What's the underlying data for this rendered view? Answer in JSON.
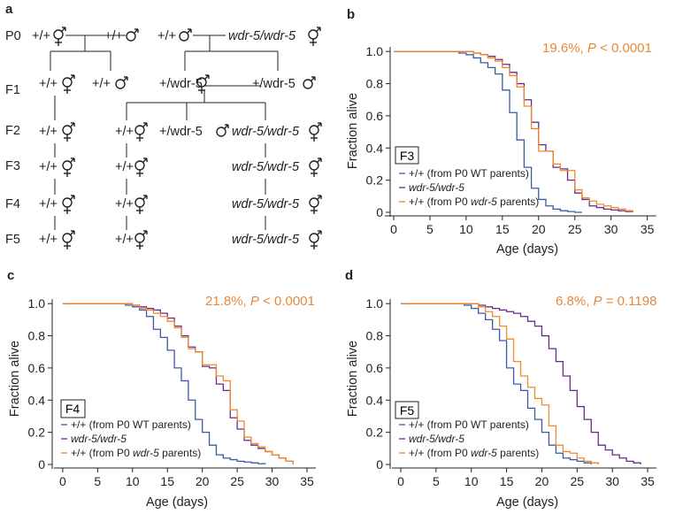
{
  "panel_labels": {
    "a": "a",
    "b": "b",
    "c": "c",
    "d": "d"
  },
  "colors": {
    "wt": "#3b5aa6",
    "mut": "#6a2a8a",
    "mut_parents": "#ee8a2a",
    "stat": "#e8883a",
    "axis": "#222222"
  },
  "pedigree": {
    "generations": [
      "P0",
      "F1",
      "F2",
      "F3",
      "F4",
      "F5"
    ],
    "p0": {
      "a": "+/+",
      "b": "+/+",
      "c": "+/+",
      "d": "wdr-5/wdr-5"
    },
    "f1": {
      "a": "+/+",
      "b": "+/+",
      "c": "+/wdr-5",
      "d": "+/wdr-5"
    },
    "f2": {
      "wt": "+/+",
      "orange": "+/+",
      "het": "+/wdr-5",
      "mut": "wdr-5/wdr-5"
    },
    "later": {
      "wt": "+/+",
      "orange": "+/+",
      "mut": "wdr-5/wdr-5"
    }
  },
  "chart_data": [
    {
      "type": "line",
      "panel": "b",
      "generation": "F3",
      "stat_pct": "19.6%,",
      "stat_p": "P",
      "stat_op": "< 0.0001",
      "xlabel": "Age (days)",
      "ylabel": "Fraction alive",
      "xlim": [
        0,
        37
      ],
      "ylim": [
        0,
        1.1
      ],
      "xticks": [
        0,
        5,
        10,
        15,
        20,
        25,
        30,
        35
      ],
      "yticks": [
        0,
        0.2,
        0.4,
        0.6,
        0.8,
        1.0
      ],
      "ytick_labels": [
        "0",
        "0.2",
        "0.4",
        "0.6",
        "0.8",
        "1.0"
      ],
      "legend_entries": [
        {
          "prefix": "+/+ (from P0 WT parents)",
          "italic": "",
          "suffix": ""
        },
        {
          "prefix": "",
          "italic": "wdr-5/wdr-5",
          "suffix": ""
        },
        {
          "prefix": "+/+ (from P0 ",
          "italic": "wdr-5",
          "suffix": " parents)"
        }
      ],
      "series": [
        {
          "color": "wt",
          "x": [
            0,
            7,
            9,
            10,
            11,
            12,
            13,
            14,
            15,
            16,
            17,
            18,
            19,
            20,
            21,
            22,
            23,
            24,
            25,
            26
          ],
          "y": [
            1.0,
            1.0,
            0.99,
            0.98,
            0.96,
            0.93,
            0.9,
            0.86,
            0.76,
            0.62,
            0.45,
            0.28,
            0.15,
            0.08,
            0.04,
            0.02,
            0.01,
            0.005,
            0.0,
            0.0
          ]
        },
        {
          "color": "mut",
          "x": [
            0,
            9,
            11,
            12,
            13,
            14,
            15,
            16,
            17,
            18,
            19,
            20,
            21,
            22,
            23,
            24,
            25,
            26,
            27,
            28,
            29,
            30,
            31,
            32,
            33
          ],
          "y": [
            1.0,
            1.0,
            0.99,
            0.98,
            0.97,
            0.95,
            0.92,
            0.87,
            0.8,
            0.7,
            0.56,
            0.42,
            0.38,
            0.28,
            0.27,
            0.2,
            0.12,
            0.08,
            0.04,
            0.03,
            0.02,
            0.015,
            0.01,
            0.005,
            0.0
          ]
        },
        {
          "color": "mut_parents",
          "x": [
            0,
            9,
            11,
            12,
            13,
            14,
            15,
            16,
            17,
            18,
            19,
            20,
            21,
            22,
            23,
            24,
            25,
            26,
            27,
            28,
            29,
            30,
            31,
            32,
            33
          ],
          "y": [
            1.0,
            1.0,
            0.99,
            0.98,
            0.96,
            0.94,
            0.9,
            0.85,
            0.78,
            0.66,
            0.52,
            0.38,
            0.38,
            0.3,
            0.26,
            0.26,
            0.14,
            0.09,
            0.07,
            0.05,
            0.04,
            0.03,
            0.02,
            0.01,
            0.0
          ]
        }
      ]
    },
    {
      "type": "line",
      "panel": "c",
      "generation": "F4",
      "stat_pct": "21.8%,",
      "stat_p": "P",
      "stat_op": "< 0.0001",
      "xlabel": "Age (days)",
      "ylabel": "Fraction alive",
      "xlim": [
        -1,
        35
      ],
      "ylim": [
        0,
        1.1
      ],
      "xticks": [
        0,
        5,
        10,
        15,
        20,
        25,
        30,
        35
      ],
      "yticks": [
        0,
        0.2,
        0.4,
        0.6,
        0.8,
        1.0
      ],
      "ytick_labels": [
        "0",
        "0.2",
        "0.4",
        "0.6",
        "0.8",
        "1.0"
      ],
      "legend_entries": [
        {
          "prefix": "+/+ (from P0 WT parents)",
          "italic": "",
          "suffix": ""
        },
        {
          "prefix": "",
          "italic": "wdr-5/wdr-5",
          "suffix": ""
        },
        {
          "prefix": "+/+ (from P0 ",
          "italic": "wdr-5",
          "suffix": " parents)"
        }
      ],
      "series": [
        {
          "color": "wt",
          "x": [
            0,
            7,
            9,
            10,
            11,
            12,
            13,
            14,
            15,
            16,
            17,
            18,
            19,
            20,
            21,
            22,
            23,
            24,
            25,
            26,
            27,
            28,
            29
          ],
          "y": [
            1.0,
            1.0,
            0.99,
            0.98,
            0.96,
            0.92,
            0.84,
            0.79,
            0.71,
            0.6,
            0.52,
            0.4,
            0.28,
            0.2,
            0.12,
            0.06,
            0.04,
            0.03,
            0.02,
            0.015,
            0.01,
            0.005,
            0.0
          ]
        },
        {
          "color": "mut",
          "x": [
            0,
            8,
            10,
            11,
            12,
            13,
            14,
            15,
            16,
            17,
            18,
            19,
            20,
            21,
            22,
            23,
            24,
            25,
            26,
            27,
            28,
            29,
            30,
            31,
            32,
            33
          ],
          "y": [
            1.0,
            1.0,
            0.99,
            0.98,
            0.97,
            0.96,
            0.94,
            0.91,
            0.86,
            0.8,
            0.73,
            0.7,
            0.61,
            0.6,
            0.5,
            0.46,
            0.29,
            0.22,
            0.15,
            0.12,
            0.1,
            0.08,
            0.06,
            0.04,
            0.02,
            0.0
          ]
        },
        {
          "color": "mut_parents",
          "x": [
            0,
            8,
            10,
            11,
            12,
            13,
            14,
            15,
            16,
            17,
            18,
            19,
            20,
            21,
            22,
            23,
            24,
            25,
            26,
            27,
            28,
            29,
            30,
            31,
            32,
            33
          ],
          "y": [
            1.0,
            1.0,
            0.99,
            0.97,
            0.96,
            0.94,
            0.92,
            0.89,
            0.85,
            0.79,
            0.72,
            0.7,
            0.62,
            0.62,
            0.55,
            0.52,
            0.34,
            0.27,
            0.17,
            0.13,
            0.11,
            0.08,
            0.06,
            0.04,
            0.02,
            0.0
          ]
        }
      ]
    },
    {
      "type": "line",
      "panel": "d",
      "generation": "F5",
      "stat_pct": "6.8%,",
      "stat_p": "P",
      "stat_op": "= 0.1198",
      "xlabel": "Age (days)",
      "ylabel": "Fraction alive",
      "xlim": [
        -1,
        37
      ],
      "ylim": [
        0,
        1.1
      ],
      "xticks": [
        0,
        5,
        10,
        15,
        20,
        25,
        30,
        35
      ],
      "yticks": [
        0,
        0.2,
        0.4,
        0.6,
        0.8,
        1.0
      ],
      "ytick_labels": [
        "0",
        "0.2",
        "0.4",
        "0.6",
        "0.8",
        "1.0"
      ],
      "legend_entries": [
        {
          "prefix": "+/+ (from P0 WT parents)",
          "italic": "",
          "suffix": ""
        },
        {
          "prefix": "",
          "italic": "wdr-5/wdr-5",
          "suffix": ""
        },
        {
          "prefix": "+/+ (from P0 ",
          "italic": "wdr-5",
          "suffix": " parents)"
        }
      ],
      "series": [
        {
          "color": "wt",
          "x": [
            0,
            7,
            9,
            10,
            11,
            12,
            13,
            14,
            15,
            16,
            17,
            18,
            19,
            20,
            21,
            22,
            23,
            24,
            25,
            26,
            27
          ],
          "y": [
            1.0,
            1.0,
            0.99,
            0.97,
            0.94,
            0.9,
            0.84,
            0.77,
            0.6,
            0.5,
            0.46,
            0.35,
            0.28,
            0.2,
            0.12,
            0.07,
            0.04,
            0.03,
            0.02,
            0.01,
            0.0
          ]
        },
        {
          "color": "mut",
          "x": [
            0,
            9,
            11,
            12,
            13,
            14,
            15,
            16,
            17,
            18,
            19,
            20,
            21,
            22,
            23,
            24,
            25,
            26,
            27,
            28,
            29,
            30,
            31,
            32,
            33,
            34
          ],
          "y": [
            1.0,
            1.0,
            0.99,
            0.98,
            0.97,
            0.96,
            0.95,
            0.94,
            0.92,
            0.89,
            0.86,
            0.8,
            0.72,
            0.64,
            0.55,
            0.46,
            0.36,
            0.28,
            0.2,
            0.12,
            0.09,
            0.06,
            0.04,
            0.02,
            0.01,
            0.0
          ]
        },
        {
          "color": "mut_parents",
          "x": [
            0,
            9,
            11,
            12,
            13,
            14,
            15,
            16,
            17,
            18,
            19,
            20,
            21,
            22,
            23,
            24,
            25,
            26,
            27,
            28
          ],
          "y": [
            1.0,
            1.0,
            0.98,
            0.95,
            0.92,
            0.86,
            0.78,
            0.64,
            0.55,
            0.48,
            0.41,
            0.37,
            0.24,
            0.12,
            0.08,
            0.07,
            0.04,
            0.02,
            0.01,
            0.0
          ]
        }
      ]
    }
  ]
}
